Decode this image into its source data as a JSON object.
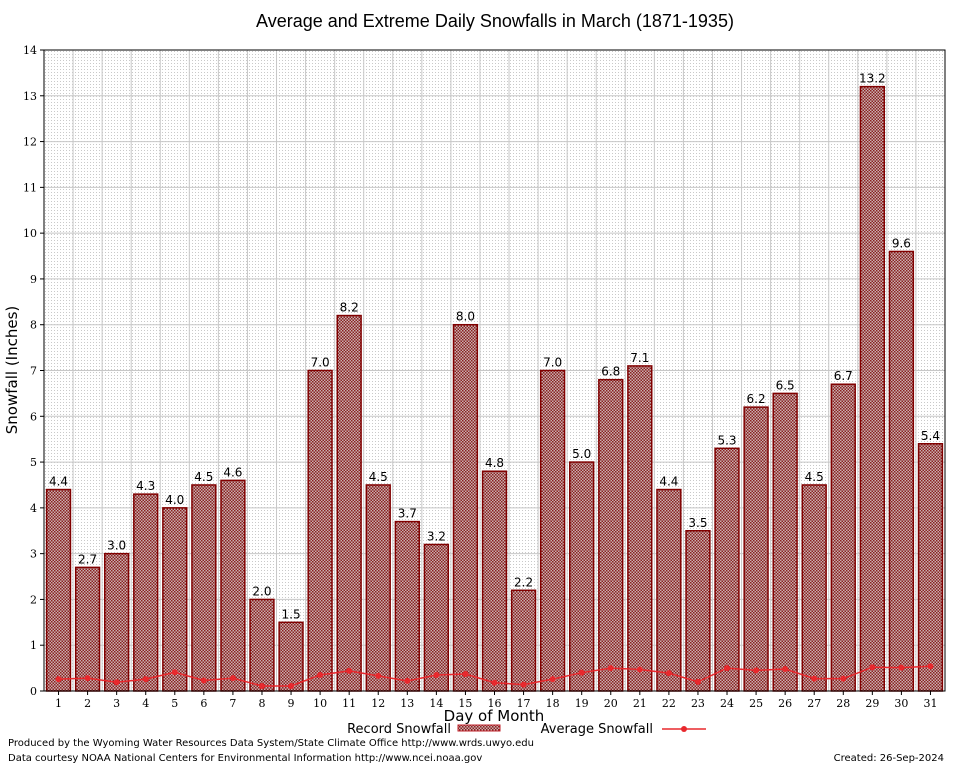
{
  "chart_data": {
    "type": "bar",
    "title": "Average and Extreme Daily Snowfalls in March (1871-1935)",
    "xlabel": "Day of Month",
    "ylabel": "Snowfall (Inches)",
    "ylim": [
      0,
      14
    ],
    "yticks": [
      "0",
      "1",
      "2",
      "3",
      "4",
      "5",
      "6",
      "7",
      "8",
      "9",
      "10",
      "11",
      "12",
      "13",
      "14"
    ],
    "grid": true,
    "legend_placement": "bottom",
    "categories": [
      "1",
      "2",
      "3",
      "4",
      "5",
      "6",
      "7",
      "8",
      "9",
      "10",
      "11",
      "12",
      "13",
      "14",
      "15",
      "16",
      "17",
      "18",
      "19",
      "20",
      "21",
      "22",
      "23",
      "24",
      "25",
      "26",
      "27",
      "28",
      "29",
      "30",
      "31"
    ],
    "series": [
      {
        "name": "Record Snowfall",
        "kind": "bar",
        "values": [
          4.4,
          2.7,
          3.0,
          4.3,
          4.0,
          4.5,
          4.6,
          2.0,
          1.5,
          7.0,
          8.2,
          4.5,
          3.7,
          3.2,
          8.0,
          4.8,
          2.2,
          7.0,
          5.0,
          6.8,
          7.1,
          4.4,
          3.5,
          5.3,
          6.2,
          6.5,
          4.5,
          6.7,
          13.2,
          9.6,
          5.4
        ],
        "labels": [
          "4.4",
          "2.7",
          "3.0",
          "4.3",
          "4.0",
          "4.5",
          "4.6",
          "2.0",
          "1.5",
          "7.0",
          "8.2",
          "4.5",
          "3.7",
          "3.2",
          "8.0",
          "4.8",
          "2.2",
          "7.0",
          "5.0",
          "6.8",
          "7.1",
          "4.4",
          "3.5",
          "5.3",
          "6.2",
          "6.5",
          "4.5",
          "6.7",
          "13.2",
          "9.6",
          "5.4"
        ]
      },
      {
        "name": "Average Snowfall",
        "kind": "line",
        "values": [
          0.26,
          0.28,
          0.19,
          0.26,
          0.41,
          0.23,
          0.28,
          0.11,
          0.11,
          0.35,
          0.44,
          0.33,
          0.22,
          0.35,
          0.37,
          0.18,
          0.14,
          0.26,
          0.4,
          0.5,
          0.47,
          0.39,
          0.2,
          0.5,
          0.45,
          0.48,
          0.27,
          0.27,
          0.52,
          0.51,
          0.54
        ]
      }
    ],
    "colors": {
      "bar_fill": "#b29898",
      "bar_stroke": "#800000",
      "line": "#e8282d",
      "grid": "#c8c8c8",
      "minor_grid": "#dcdcdc"
    }
  },
  "footer": {
    "line1": "Produced by the Wyoming Water Resources Data System/State Climate Office http://www.wrds.uwyo.edu",
    "line2": "Data courtesy NOAA National Centers for Environmental Information http://www.ncei.noaa.gov",
    "created": "Created:  26-Sep-2024"
  }
}
